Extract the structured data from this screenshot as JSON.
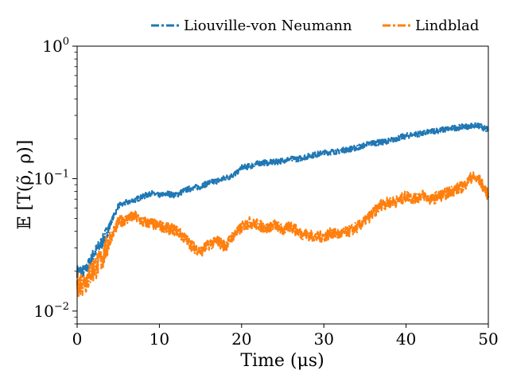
{
  "chart_data": {
    "type": "line",
    "title": "",
    "xlabel": "Time (μs)",
    "ylabel": "𝔼 [T(ρ̃, ρ)]",
    "xlim": [
      0,
      50
    ],
    "ylim": [
      0.008,
      1.0
    ],
    "yscale": "log",
    "grid": false,
    "legend_position": "top, above plot",
    "x_ticks": [
      0,
      10,
      20,
      30,
      40,
      50
    ],
    "x_tick_labels": [
      "0",
      "10",
      "20",
      "30",
      "40",
      "50"
    ],
    "y_ticks": [
      0.01,
      0.1,
      1
    ],
    "y_tick_labels": [
      {
        "base": "10",
        "exp": "−2"
      },
      {
        "base": "10",
        "exp": "−1"
      },
      {
        "base": "10",
        "exp": "0"
      }
    ],
    "series": [
      {
        "name": "Liouville-von Neumann",
        "color": "#1f77b4",
        "x": [
          0,
          1,
          2,
          3,
          4,
          5,
          6,
          7,
          8,
          9,
          10,
          11,
          12,
          13,
          14,
          15,
          16,
          17,
          18,
          19,
          20,
          21,
          22,
          23,
          24,
          25,
          26,
          27,
          28,
          29,
          30,
          31,
          32,
          33,
          34,
          35,
          36,
          37,
          38,
          39,
          40,
          41,
          42,
          43,
          44,
          45,
          46,
          47,
          48,
          49,
          50
        ],
        "y": [
          0.02,
          0.02,
          0.027,
          0.033,
          0.045,
          0.062,
          0.066,
          0.069,
          0.073,
          0.078,
          0.074,
          0.077,
          0.075,
          0.081,
          0.085,
          0.087,
          0.093,
          0.096,
          0.101,
          0.106,
          0.121,
          0.124,
          0.13,
          0.132,
          0.133,
          0.137,
          0.14,
          0.142,
          0.147,
          0.152,
          0.156,
          0.16,
          0.162,
          0.167,
          0.171,
          0.18,
          0.186,
          0.188,
          0.193,
          0.203,
          0.21,
          0.216,
          0.219,
          0.227,
          0.232,
          0.236,
          0.242,
          0.246,
          0.251,
          0.249,
          0.232
        ]
      },
      {
        "name": "Lindblad",
        "color": "#ff7f0e",
        "x": [
          0,
          1,
          2,
          3,
          4,
          5,
          6,
          7,
          8,
          9,
          10,
          11,
          12,
          13,
          14,
          15,
          16,
          17,
          18,
          19,
          20,
          21,
          22,
          23,
          24,
          25,
          26,
          27,
          28,
          29,
          30,
          31,
          32,
          33,
          34,
          35,
          36,
          37,
          38,
          39,
          40,
          41,
          42,
          43,
          44,
          45,
          46,
          47,
          48,
          49,
          50
        ],
        "y": [
          0.016,
          0.017,
          0.021,
          0.025,
          0.035,
          0.047,
          0.05,
          0.052,
          0.047,
          0.046,
          0.044,
          0.042,
          0.041,
          0.036,
          0.031,
          0.028,
          0.032,
          0.034,
          0.031,
          0.037,
          0.043,
          0.047,
          0.045,
          0.042,
          0.045,
          0.041,
          0.044,
          0.039,
          0.038,
          0.036,
          0.037,
          0.039,
          0.038,
          0.04,
          0.043,
          0.048,
          0.055,
          0.064,
          0.066,
          0.068,
          0.074,
          0.071,
          0.075,
          0.07,
          0.074,
          0.078,
          0.083,
          0.088,
          0.104,
          0.096,
          0.075
        ]
      }
    ]
  }
}
